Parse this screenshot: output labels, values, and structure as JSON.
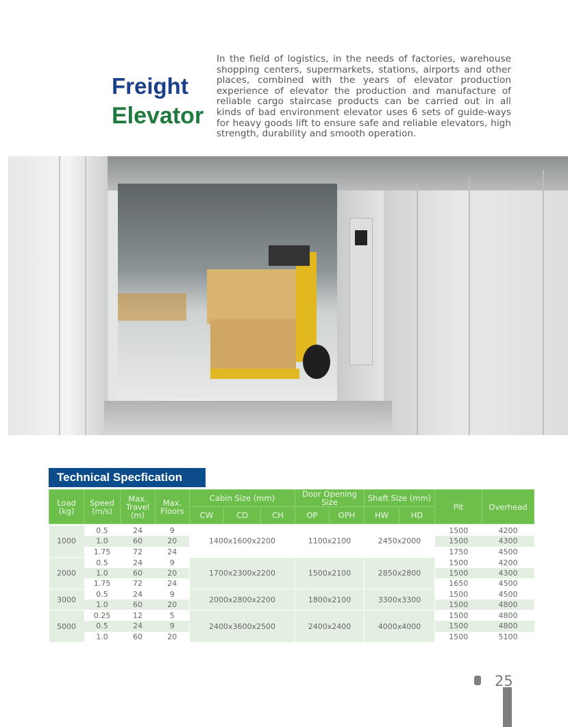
{
  "header": {
    "title_line1": "Freight",
    "title_line2": "Elevator",
    "intro": "In the field of logistics, in the needs of factories, warehouse shopping centers, supermarkets, stations, airports and other places, combined with the years of elevator production experience of elevator the production and manufacture of reliable cargo staircase products can be carried out in all kinds of bad environment elevator uses 6 sets of guide-ways for heavy goods lift to ensure safe and reliable elevators, high strength, durability and smooth operation."
  },
  "photo": {
    "subject": "forklift carrying boxes inside freight elevator car"
  },
  "spec": {
    "title": "Technical Specfication",
    "headers": {
      "load": "Load (kg)",
      "speed": "Speed (m/s)",
      "travel": "Max. Travel (m)",
      "floors": "Max. Floors",
      "cabin": "Cabin Size (mm)",
      "door": "Door Opening Size",
      "shaft": "Shaft Size (mm)",
      "pit": "Pit",
      "overhead": "Overhead",
      "cw": "CW",
      "cd": "CD",
      "ch": "CH",
      "op": "OP",
      "oph": "OPH",
      "hw": "HW",
      "hd": "HD"
    },
    "groups": [
      {
        "load": "1000",
        "cabin": "1400x1600x2200",
        "door": "1100x2100",
        "shaft": "2450x2000",
        "rows": [
          [
            "0.5",
            "24",
            "9",
            "1500",
            "4200"
          ],
          [
            "1.0",
            "60",
            "20",
            "1500",
            "4300"
          ],
          [
            "1.75",
            "72",
            "24",
            "1750",
            "4500"
          ]
        ]
      },
      {
        "load": "2000",
        "cabin": "1700x2300x2200",
        "door": "1500x2100",
        "shaft": "2850x2800",
        "rows": [
          [
            "0.5",
            "24",
            "9",
            "1500",
            "4200"
          ],
          [
            "1.0",
            "60",
            "20",
            "1500",
            "4300"
          ],
          [
            "1.75",
            "72",
            "24",
            "1650",
            "4500"
          ]
        ]
      },
      {
        "load": "3000",
        "cabin": "2000x2800x2200",
        "door": "1800x2100",
        "shaft": "3300x3300",
        "rows": [
          [
            "0.5",
            "24",
            "9",
            "1500",
            "4500"
          ],
          [
            "1.0",
            "60",
            "20",
            "1500",
            "4800"
          ]
        ]
      },
      {
        "load": "5000",
        "cabin": "2400x3600x2500",
        "door": "2400x2400",
        "shaft": "4000x4000",
        "rows": [
          [
            "0.25",
            "12",
            "5",
            "1500",
            "4800"
          ],
          [
            "0.5",
            "24",
            "9",
            "1500",
            "4800"
          ],
          [
            "1.0",
            "60",
            "20",
            "1500",
            "5100"
          ]
        ]
      }
    ]
  },
  "footer": {
    "page_number": "25"
  },
  "colors": {
    "title_blue": "#1c3f8c",
    "title_green": "#1f7a3f",
    "header_green": "#6cbf4b",
    "section_blue": "#0d4c8b",
    "row_shade": "#e3f0e1"
  }
}
